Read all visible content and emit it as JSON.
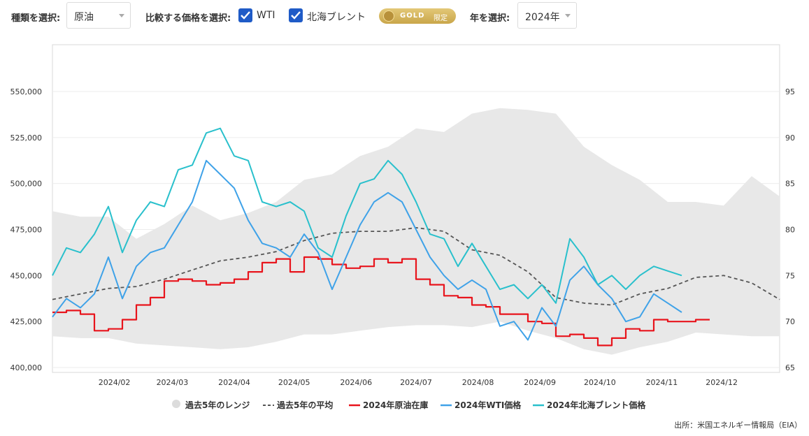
{
  "controls": {
    "type_label": "種類を選択:",
    "type_value": "原油",
    "compare_label": "比較する価格を選択:",
    "wti_label": "WTI",
    "brent_label": "北海ブレント",
    "gold_text": "GOLD",
    "gold_sub": "限定",
    "year_label": "年を選択:",
    "year_value": "2024年"
  },
  "colors": {
    "range": "#e8e8e8",
    "avg": "#555555",
    "stock": "#e8141c",
    "wti": "#3fa2e8",
    "brent": "#29c0cc",
    "check": "#1f5bc7"
  },
  "chart_data": {
    "type": "line",
    "x_ticks": [
      "2024/02",
      "2024/03",
      "2024/04",
      "2024/05",
      "2024/06",
      "2024/07",
      "2024/08",
      "2024/09",
      "2024/10",
      "2024/11",
      "2024/12"
    ],
    "y_left_ticks": [
      "400,000",
      "425,000",
      "450,000",
      "475,000",
      "500,000",
      "525,000",
      "550,000"
    ],
    "y_right_ticks": [
      "65",
      "70",
      "75",
      "80",
      "85",
      "90",
      "95"
    ],
    "ylim_left": [
      400000,
      550000
    ],
    "ylim_right": [
      65,
      95
    ],
    "grid": true,
    "legend_position": "bottom",
    "legend": [
      "過去5年のレンジ",
      "過去5年の平均",
      "2024年原油在庫",
      "2024年WTI価格",
      "2024年北海ブレント価格"
    ],
    "range_x": [
      0,
      2,
      4,
      6,
      8,
      10,
      12,
      14,
      16,
      18,
      20,
      22,
      24,
      26,
      28,
      30,
      32,
      34,
      36,
      38,
      40,
      42,
      44,
      46,
      48,
      50,
      52
    ],
    "range_high": [
      485000,
      482000,
      482000,
      470000,
      478000,
      488000,
      480000,
      484000,
      490000,
      502000,
      505000,
      515000,
      520000,
      530000,
      528000,
      538000,
      541000,
      540000,
      538000,
      520000,
      510000,
      502000,
      490000,
      490000,
      488000,
      504000,
      493000
    ],
    "range_low": [
      417000,
      416000,
      416000,
      413000,
      412000,
      411000,
      410000,
      411000,
      414000,
      418000,
      418000,
      420000,
      422000,
      423000,
      423000,
      422000,
      425000,
      420000,
      416000,
      410000,
      407000,
      411000,
      414000,
      419000,
      418000,
      417000,
      417000
    ],
    "series": [
      {
        "name": "過去5年の平均",
        "axis": "left",
        "x": [
          0,
          2,
          4,
          6,
          8,
          10,
          12,
          14,
          16,
          18,
          20,
          22,
          24,
          26,
          28,
          30,
          32,
          34,
          36,
          38,
          40,
          42,
          44,
          46,
          48,
          50,
          52
        ],
        "values": [
          437000,
          440000,
          443000,
          444000,
          448000,
          453000,
          458000,
          460000,
          463000,
          469000,
          473000,
          474000,
          474000,
          476000,
          474000,
          464000,
          461000,
          452000,
          438000,
          435000,
          434000,
          440000,
          443000,
          449000,
          450000,
          446000,
          437000
        ]
      },
      {
        "name": "2024年原油在庫",
        "axis": "left",
        "x": [
          0,
          1,
          2,
          3,
          4,
          5,
          6,
          7,
          8,
          9,
          10,
          11,
          12,
          13,
          14,
          15,
          16,
          17,
          18,
          19,
          20,
          21,
          22,
          23,
          24,
          25,
          26,
          27,
          28,
          29,
          30,
          31,
          32,
          33,
          34,
          35,
          36,
          37,
          38,
          39,
          40,
          41,
          42,
          43,
          44,
          45,
          46
        ],
        "values": [
          430000,
          431000,
          429000,
          420000,
          421000,
          426000,
          434000,
          438000,
          447000,
          448000,
          447000,
          445000,
          446000,
          448000,
          452000,
          457000,
          459000,
          452000,
          460000,
          459000,
          456000,
          454000,
          455000,
          459000,
          457000,
          459000,
          448000,
          445000,
          439000,
          438000,
          434000,
          433000,
          429000,
          429000,
          425000,
          424000,
          417000,
          418000,
          416000,
          412000,
          416000,
          421000,
          420000,
          426000,
          425000,
          425000,
          426000
        ]
      },
      {
        "name": "2024年WTI価格",
        "axis": "right",
        "x": [
          0,
          1,
          2,
          3,
          4,
          5,
          6,
          7,
          8,
          9,
          10,
          11,
          12,
          13,
          14,
          15,
          16,
          17,
          18,
          19,
          20,
          21,
          22,
          23,
          24,
          25,
          26,
          27,
          28,
          29,
          30,
          31,
          32,
          33,
          34,
          35,
          36,
          37,
          38,
          39,
          40,
          41,
          42,
          43,
          44,
          45
        ],
        "values": [
          70.5,
          72.5,
          71.5,
          73.0,
          77.0,
          72.5,
          76.0,
          77.5,
          78.0,
          80.5,
          83.0,
          87.5,
          86.0,
          84.5,
          81.0,
          78.5,
          78.0,
          77.0,
          79.5,
          77.5,
          73.5,
          77.0,
          80.5,
          83.0,
          84.0,
          83.0,
          80.0,
          77.0,
          75.0,
          73.5,
          74.5,
          73.5,
          69.5,
          70.0,
          68.0,
          71.5,
          69.5,
          74.5,
          76.0,
          74.0,
          72.5,
          70.0,
          70.5,
          73.0,
          72.0,
          71.0
        ]
      },
      {
        "name": "2024年北海ブレント価格",
        "axis": "right",
        "x": [
          0,
          1,
          2,
          3,
          4,
          5,
          6,
          7,
          8,
          9,
          10,
          11,
          12,
          13,
          14,
          15,
          16,
          17,
          18,
          19,
          20,
          21,
          22,
          23,
          24,
          25,
          26,
          27,
          28,
          29,
          30,
          31,
          32,
          33,
          34,
          35,
          36,
          37,
          38,
          39,
          40,
          41,
          42,
          43,
          44,
          45
        ],
        "values": [
          75.0,
          78.0,
          77.5,
          79.5,
          82.5,
          77.5,
          81.0,
          83.0,
          82.5,
          86.5,
          87.0,
          90.5,
          91.0,
          88.0,
          87.5,
          83.0,
          82.5,
          83.0,
          82.0,
          78.0,
          77.0,
          81.5,
          85.0,
          85.5,
          87.5,
          86.0,
          83.0,
          79.5,
          79.0,
          76.0,
          78.5,
          76.0,
          73.5,
          74.0,
          72.5,
          74.0,
          72.0,
          79.0,
          77.0,
          74.0,
          75.0,
          73.5,
          75.0,
          76.0,
          75.5,
          75.0
        ]
      }
    ]
  },
  "source": "出所：米国エネルギー情報局（EIA）"
}
